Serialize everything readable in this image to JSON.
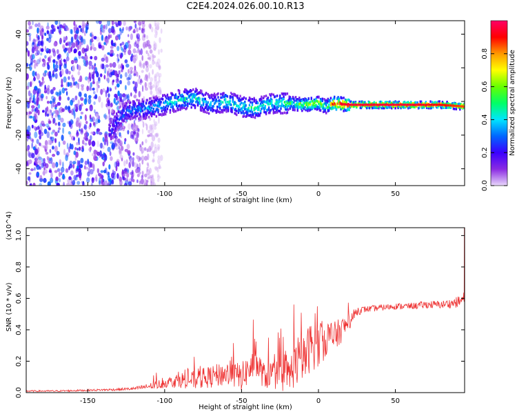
{
  "title": "C2E4.2024.026.00.10.R13",
  "chart_data": [
    {
      "type": "heatmap",
      "xlabel": "Height of straight line (km)",
      "ylabel": "Frequency (Hz)",
      "xlim": [
        -190,
        95
      ],
      "ylim": [
        -50,
        48
      ],
      "x_ticks": [
        -150,
        -100,
        -50,
        0,
        50
      ],
      "y_ticks": [
        -40,
        -20,
        0,
        20,
        40
      ],
      "colorbar": {
        "label": "Normalized spectral amplitude",
        "range": [
          0,
          1
        ],
        "ticks": [
          0.0,
          0.2,
          0.4,
          0.6,
          0.8
        ],
        "colors": [
          "#e9d8fb",
          "#8a2be2",
          "#3b00ff",
          "#0066ff",
          "#00e5ff",
          "#00ff66",
          "#66ff00",
          "#ffff00",
          "#ff9900",
          "#ff0000",
          "#ff0066"
        ]
      },
      "ridge": {
        "x": [
          -135,
          -130,
          -125,
          -120,
          -110,
          -100,
          -90,
          -80,
          -70,
          -60,
          -50,
          -40,
          -30,
          -20,
          -10,
          0,
          5,
          10,
          20,
          40,
          60,
          80,
          95
        ],
        "y": [
          -18,
          -10,
          -6,
          -5,
          -4,
          -2,
          1,
          2,
          -2,
          0,
          -3,
          -4,
          -1,
          -1,
          -2,
          -1,
          -3,
          -1,
          -2,
          -2,
          -2,
          -2,
          -3
        ],
        "amplitude": [
          0.25,
          0.3,
          0.3,
          0.32,
          0.35,
          0.4,
          0.45,
          0.45,
          0.4,
          0.45,
          0.45,
          0.5,
          0.45,
          0.5,
          0.6,
          0.7,
          0.5,
          0.9,
          0.95,
          0.95,
          0.95,
          0.9,
          0.85
        ]
      },
      "noise_region": {
        "x_range": [
          -190,
          -110
        ],
        "y_range": [
          -50,
          48
        ]
      }
    },
    {
      "type": "line",
      "xlabel": "Height of straight line (km)",
      "ylabel": "SNR (10 * v/v)",
      "y_multiplier": "(x10^4)",
      "xlim": [
        -190,
        95
      ],
      "ylim": [
        0,
        1.05
      ],
      "x_ticks": [
        -150,
        -100,
        -50,
        0,
        50
      ],
      "y_ticks": [
        0.0,
        0.2,
        0.4,
        0.6,
        0.8,
        1.0
      ],
      "color": "#ee3333",
      "series": [
        {
          "x": [
            -190,
            -170,
            -150,
            -130,
            -120,
            -110,
            -105,
            -100,
            -90,
            -80,
            -70,
            -60,
            -50,
            -45,
            -40,
            -35,
            -30,
            -25,
            -20,
            -15,
            -10,
            -5,
            0,
            5,
            10,
            15,
            20,
            25,
            30,
            40,
            50,
            60,
            70,
            80,
            88,
            92,
            95
          ],
          "y": [
            0.01,
            0.01,
            0.015,
            0.02,
            0.025,
            0.04,
            0.05,
            0.06,
            0.08,
            0.08,
            0.1,
            0.12,
            0.1,
            0.15,
            0.18,
            0.1,
            0.12,
            0.1,
            0.1,
            0.18,
            0.2,
            0.3,
            0.3,
            0.35,
            0.35,
            0.4,
            0.45,
            0.52,
            0.53,
            0.54,
            0.55,
            0.55,
            0.56,
            0.56,
            0.57,
            0.58,
            0.6
          ],
          "noise": [
            0.005,
            0.005,
            0.006,
            0.008,
            0.01,
            0.02,
            0.03,
            0.03,
            0.05,
            0.06,
            0.07,
            0.08,
            0.09,
            0.1,
            0.1,
            0.08,
            0.09,
            0.1,
            0.12,
            0.14,
            0.15,
            0.16,
            0.15,
            0.12,
            0.1,
            0.08,
            0.05,
            0.03,
            0.02,
            0.02,
            0.02,
            0.02,
            0.025,
            0.025,
            0.03,
            0.04,
            0.05
          ]
        }
      ]
    }
  ]
}
